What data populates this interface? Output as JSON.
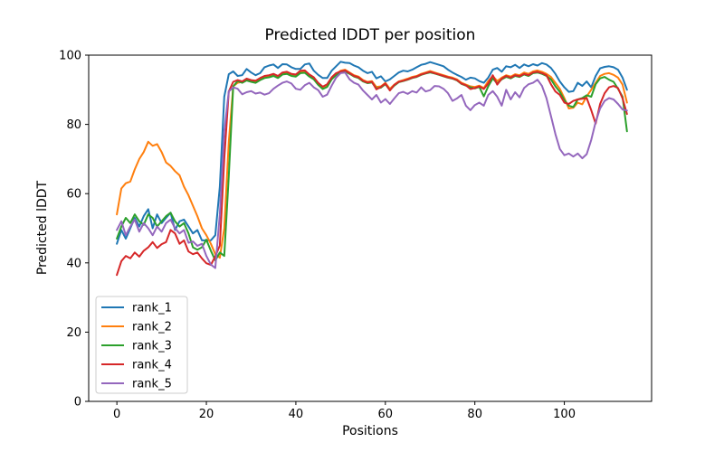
{
  "figure": {
    "background": "#ffffff",
    "frame_color": "#000000"
  },
  "chart_data": {
    "type": "line",
    "title": "Predicted lDDT per position",
    "xlabel": "Positions",
    "ylabel": "Predicted lDDT",
    "xlim": [
      -6.3,
      119.5
    ],
    "ylim": [
      0,
      100
    ],
    "xticks": [
      0,
      20,
      40,
      60,
      80,
      100
    ],
    "yticks": [
      0,
      20,
      40,
      60,
      80,
      100
    ],
    "grid": false,
    "legend_position": "lower left",
    "x_start": 0,
    "x_step": 1,
    "n_points": 115,
    "series": [
      {
        "name": "rank_1",
        "color": "#1f77b4",
        "values": [
          45.5,
          49.5,
          47,
          50,
          53,
          50.5,
          53.5,
          55.5,
          50,
          54,
          51.5,
          53,
          54.5,
          49.5,
          52,
          52.5,
          50.5,
          48.5,
          49.5,
          46.5,
          46.5,
          46.5,
          48,
          62,
          88,
          94.5,
          95.3,
          94,
          94.2,
          96,
          95,
          94.2,
          94.8,
          96.5,
          97,
          97.3,
          96.3,
          97.4,
          97.3,
          96.5,
          96,
          96,
          97.3,
          97.6,
          95.5,
          94.3,
          93.4,
          93.4,
          95.5,
          96.8,
          98.1,
          97.8,
          97.7,
          97,
          96.5,
          95.5,
          94.8,
          95.2,
          93.3,
          93.9,
          92.4,
          93,
          94,
          95,
          95.5,
          95.3,
          95.8,
          96.5,
          97.2,
          97.5,
          98,
          97.6,
          97.2,
          96.8,
          95.8,
          95,
          94.3,
          93.7,
          92.9,
          93.5,
          93.3,
          92.5,
          92,
          93.5,
          95.8,
          96.3,
          95.2,
          96.8,
          96.5,
          97.2,
          96.3,
          97.3,
          96.8,
          97.4,
          97,
          97.7,
          97.3,
          96.3,
          94.6,
          92.4,
          90.7,
          89.4,
          89.6,
          92,
          91.1,
          92.4,
          90.7,
          94,
          96.2,
          96.6,
          96.8,
          96.5,
          95.8,
          93.5,
          90
        ]
      },
      {
        "name": "rank_2",
        "color": "#ff7f0e",
        "values": [
          54,
          61.5,
          63,
          63.5,
          67,
          70,
          72,
          75,
          73.8,
          74.3,
          72,
          69,
          68,
          66.5,
          65.3,
          62,
          59.5,
          56.5,
          53.5,
          50,
          48,
          45.5,
          42.5,
          41.5,
          50,
          75,
          91,
          92,
          92.3,
          93,
          92.7,
          92.5,
          93.2,
          93.8,
          94,
          94.3,
          93.8,
          94.8,
          95,
          94.5,
          94.2,
          95.2,
          95.4,
          94.3,
          93.3,
          91.8,
          90.7,
          91.3,
          93.3,
          94.5,
          95.5,
          95.8,
          95,
          94.2,
          93.8,
          92.8,
          92.3,
          92.5,
          90.8,
          91,
          92,
          90.3,
          91.5,
          92.4,
          92.8,
          93.2,
          93.7,
          94,
          94.6,
          95,
          95.4,
          95,
          94.6,
          94.2,
          93.8,
          93.5,
          93,
          92,
          91.5,
          91,
          90.8,
          91.2,
          90.5,
          92.5,
          94,
          92.5,
          93.5,
          94.2,
          93.8,
          94.5,
          94.2,
          95,
          94.6,
          95.3,
          95.6,
          95.2,
          94.6,
          93.7,
          92,
          90.3,
          87.6,
          84.6,
          84.8,
          86.3,
          85.8,
          88.1,
          90,
          92,
          94,
          94.6,
          94.8,
          94.3,
          93.5,
          91.5,
          86.3
        ]
      },
      {
        "name": "rank_3",
        "color": "#2ca02c",
        "values": [
          47,
          50.5,
          53,
          51.5,
          54,
          52,
          51,
          54,
          53,
          50.5,
          52,
          53.5,
          54.5,
          52,
          50.5,
          51.5,
          48.5,
          44.5,
          43.8,
          44.5,
          46.7,
          43.5,
          40.7,
          43,
          42,
          65,
          91,
          92.5,
          92,
          92.7,
          92.3,
          92,
          92.8,
          93.4,
          93.6,
          94,
          93.4,
          94.4,
          94.6,
          94,
          93.8,
          94.8,
          94.9,
          93.8,
          93,
          91.4,
          90.2,
          90.8,
          93,
          94.2,
          95,
          95.3,
          94.6,
          93.8,
          93.4,
          92.4,
          91.9,
          92.1,
          90.4,
          90.6,
          91.6,
          89.9,
          91.2,
          92.2,
          92.5,
          92.9,
          93.4,
          93.7,
          94.3,
          94.7,
          95,
          94.7,
          94.3,
          93.9,
          93.5,
          93.2,
          92.7,
          91.7,
          91.2,
          90.7,
          90.4,
          90.8,
          88.1,
          91,
          93.3,
          91.8,
          93,
          93.7,
          93.3,
          94,
          93.7,
          94.4,
          94,
          94.8,
          95,
          94.6,
          94,
          93,
          91,
          89.4,
          87,
          85.4,
          85,
          87.2,
          87.6,
          88.4,
          88,
          91.6,
          93.3,
          93.7,
          92.9,
          92.3,
          90.3,
          88,
          78
        ]
      },
      {
        "name": "rank_4",
        "color": "#d62728",
        "values": [
          36.5,
          40.5,
          42,
          41.3,
          43,
          41.8,
          43.5,
          44.5,
          46,
          44.3,
          45.4,
          46,
          49.5,
          48.5,
          45.5,
          46.5,
          43.3,
          42.5,
          43,
          41.3,
          39.9,
          39.4,
          41.9,
          45,
          70,
          89.5,
          92.3,
          92.8,
          92.4,
          93.2,
          92.8,
          92.6,
          93.4,
          94,
          94.2,
          94.6,
          94,
          95,
          95.2,
          94.6,
          94.4,
          95.5,
          95.6,
          94.4,
          93.6,
          92,
          90.9,
          91.6,
          93.6,
          94.8,
          95.3,
          95.6,
          94.8,
          94,
          93.6,
          92.6,
          92.1,
          92.3,
          90.1,
          90.8,
          91.8,
          89.8,
          91.4,
          92.3,
          92.6,
          93,
          93.5,
          93.8,
          94.4,
          94.8,
          95.2,
          94.8,
          94.4,
          94,
          93.6,
          93.3,
          92.8,
          91.8,
          91.3,
          90.2,
          90.5,
          91,
          90.2,
          91.8,
          94.2,
          91.5,
          93.2,
          94,
          93.5,
          94.2,
          93.9,
          94.6,
          94.2,
          95,
          95.2,
          94.8,
          94.2,
          91.6,
          89.5,
          88.5,
          86.3,
          85.9,
          86.8,
          87.2,
          87.4,
          87.6,
          84.1,
          80.2,
          85.9,
          89,
          90.7,
          91.1,
          90.5,
          87.5,
          83
        ]
      },
      {
        "name": "rank_5",
        "color": "#9467bd",
        "values": [
          49.5,
          52,
          48,
          50.5,
          52.5,
          49,
          51.5,
          50,
          48,
          50.5,
          49,
          51.5,
          52.5,
          50,
          48.5,
          49.5,
          45.8,
          46.2,
          44.9,
          45.5,
          42,
          39.5,
          38.5,
          54,
          78,
          89.5,
          90.7,
          90.3,
          88.7,
          89.3,
          89.6,
          88.9,
          89.2,
          88.6,
          89,
          90.3,
          91.2,
          92,
          92.4,
          91.8,
          90.3,
          90,
          91.3,
          92,
          90.7,
          89.9,
          88,
          88.6,
          91.2,
          93.5,
          94.8,
          95,
          93,
          92,
          91.5,
          89.8,
          88.5,
          87.2,
          88.5,
          86.3,
          87.3,
          85.9,
          87.5,
          89,
          89.4,
          88.8,
          89.6,
          89.2,
          90.7,
          89.5,
          89.9,
          91.1,
          91,
          90.3,
          89,
          86.8,
          87.5,
          88.5,
          85.4,
          84.1,
          85.6,
          86.3,
          85.4,
          88.5,
          89.6,
          88,
          85.4,
          90,
          87.2,
          89.3,
          87.8,
          90.5,
          91.6,
          92,
          92.9,
          91.1,
          87.6,
          82.4,
          77.2,
          72.9,
          71.1,
          71.6,
          70.7,
          71.6,
          70.2,
          71.4,
          75.5,
          80.7,
          84.6,
          86.8,
          87.6,
          87.2,
          85.9,
          84.3,
          84
        ]
      }
    ]
  },
  "legend": {
    "border_color": "#cccccc",
    "face_color": "#ffffff"
  }
}
